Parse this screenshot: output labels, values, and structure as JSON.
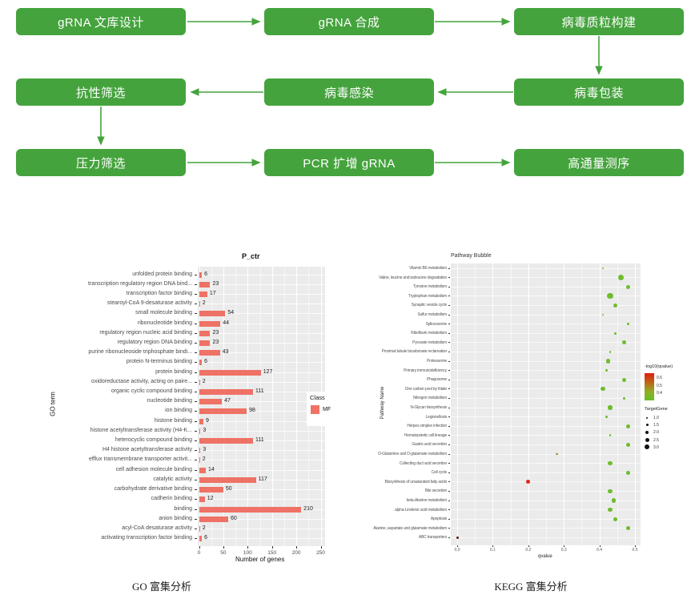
{
  "flowchart": {
    "box_color": "#45a33d",
    "steps": [
      {
        "label": "gRNA 文库设计",
        "row": 0,
        "col": 0
      },
      {
        "label": "gRNA 合成",
        "row": 0,
        "col": 1
      },
      {
        "label": "病毒质粒构建",
        "row": 0,
        "col": 2
      },
      {
        "label": "病毒包装",
        "row": 1,
        "col": 2
      },
      {
        "label": "病毒感染",
        "row": 1,
        "col": 1
      },
      {
        "label": "抗性筛选",
        "row": 1,
        "col": 0
      },
      {
        "label": "压力筛选",
        "row": 2,
        "col": 0
      },
      {
        "label": "PCR 扩增 gRNA",
        "row": 2,
        "col": 1
      },
      {
        "label": "高通量测序",
        "row": 2,
        "col": 2
      }
    ]
  },
  "captions": {
    "go": "GO 富集分析",
    "kegg": "KEGG 富集分析"
  },
  "chart_data": [
    {
      "type": "bar",
      "orientation": "horizontal",
      "title": "P_ctr",
      "xlabel": "Number of genes",
      "ylabel": "GO term",
      "xlim": [
        0,
        260
      ],
      "xticks": [
        0,
        50,
        100,
        150,
        200,
        250
      ],
      "bar_color": "#ee7265",
      "panel_bg": "#ebebeb",
      "legend": {
        "title": "Class",
        "entries": [
          {
            "label": "MF",
            "color": "#ee7265"
          }
        ]
      },
      "categories": [
        "unfolded protein binding",
        "transcription regulatory region DNA bind...",
        "transcription factor binding",
        "stearoyl-CoA 9-desaturase activity",
        "small molecule binding",
        "ribonucleotide binding",
        "regulatory region nucleic acid binding",
        "regulatory region DNA binding",
        "purine ribonucleoside triphosphate bindi...",
        "protein N-terminus binding",
        "protein binding",
        "oxidoreductase activity, acting on paire...",
        "organic cyclic compound binding",
        "nucleotide binding",
        "ion binding",
        "histone binding",
        "histone acetyltransferase activity (H4-K...",
        "heterocyclic compound binding",
        "H4 histone acetyltransferase activity",
        "efflux transmembrane transporter activit...",
        "cell adhesion molecule binding",
        "catalytic activity",
        "carbohydrate derivative binding",
        "cadherin binding",
        "binding",
        "anion binding",
        "acyl-CoA desaturase activity",
        "activating transcription factor binding"
      ],
      "values": [
        6,
        23,
        17,
        2,
        54,
        44,
        23,
        23,
        43,
        6,
        127,
        2,
        111,
        47,
        98,
        9,
        3,
        111,
        3,
        2,
        14,
        117,
        50,
        12,
        210,
        60,
        2,
        6
      ]
    },
    {
      "type": "scatter",
      "title": "Pathway Bubble",
      "xlabel": "qvalue",
      "ylabel": "Pathway Name",
      "xlim": [
        0,
        0.52
      ],
      "xticks": [
        0.0,
        0.1,
        0.2,
        0.3,
        0.4,
        0.5
      ],
      "panel_bg": "#ebebeb",
      "color_legend": {
        "title": "-log10(qvalue)",
        "ticks": [
          0.6,
          0.5,
          0.4
        ],
        "high_color": "#e01f0f",
        "low_color": "#67be28"
      },
      "size_legend": {
        "title": "TargetGene",
        "ticks": [
          1.0,
          1.5,
          2.0,
          2.5,
          3.0
        ]
      },
      "points": [
        {
          "pathway": "Vitamin B6 metabolism",
          "qvalue": 0.41,
          "target_genes": 1,
          "log10q": 0.39,
          "color": "#6fbc2e"
        },
        {
          "pathway": "Valine, leucine and isoleucine degradation",
          "qvalue": 0.46,
          "target_genes": 3,
          "log10q": 0.34,
          "color": "#6fbc2e"
        },
        {
          "pathway": "Tyrosine metabolism",
          "qvalue": 0.48,
          "target_genes": 2,
          "log10q": 0.32,
          "color": "#6fbc2e"
        },
        {
          "pathway": "Tryptophan metabolism",
          "qvalue": 0.43,
          "target_genes": 3,
          "log10q": 0.37,
          "color": "#6fbc2e"
        },
        {
          "pathway": "Synaptic vesicle cycle",
          "qvalue": 0.445,
          "target_genes": 2,
          "log10q": 0.35,
          "color": "#6fbc2e"
        },
        {
          "pathway": "Sulfur metabolism",
          "qvalue": 0.41,
          "target_genes": 1,
          "log10q": 0.39,
          "color": "#6fbc2e"
        },
        {
          "pathway": "Spliceosome",
          "qvalue": 0.48,
          "target_genes": 1,
          "log10q": 0.32,
          "color": "#6fbc2e"
        },
        {
          "pathway": "Riboflavin metabolism",
          "qvalue": 0.445,
          "target_genes": 1,
          "log10q": 0.35,
          "color": "#6fbc2e"
        },
        {
          "pathway": "Pyruvate metabolism",
          "qvalue": 0.47,
          "target_genes": 2,
          "log10q": 0.33,
          "color": "#6fbc2e"
        },
        {
          "pathway": "Proximal tubule bicarbonate reclamation",
          "qvalue": 0.43,
          "target_genes": 1,
          "log10q": 0.37,
          "color": "#6fbc2e"
        },
        {
          "pathway": "Proteasome",
          "qvalue": 0.425,
          "target_genes": 2,
          "log10q": 0.37,
          "color": "#6fbc2e"
        },
        {
          "pathway": "Primary immunodeficiency",
          "qvalue": 0.42,
          "target_genes": 1,
          "log10q": 0.38,
          "color": "#6fbc2e"
        },
        {
          "pathway": "Phagosome",
          "qvalue": 0.47,
          "target_genes": 2,
          "log10q": 0.33,
          "color": "#6fbc2e"
        },
        {
          "pathway": "One carbon pool by folate",
          "qvalue": 0.41,
          "target_genes": 2,
          "log10q": 0.39,
          "color": "#6fbc2e"
        },
        {
          "pathway": "Nitrogen metabolism",
          "qvalue": 0.47,
          "target_genes": 1,
          "log10q": 0.33,
          "color": "#6fbc2e"
        },
        {
          "pathway": "N-Glycan biosynthesis",
          "qvalue": 0.43,
          "target_genes": 2,
          "log10q": 0.37,
          "color": "#6fbc2e"
        },
        {
          "pathway": "Legionellosis",
          "qvalue": 0.42,
          "target_genes": 1,
          "log10q": 0.38,
          "color": "#6fbc2e"
        },
        {
          "pathway": "Herpes simplex infection",
          "qvalue": 0.48,
          "target_genes": 2,
          "log10q": 0.32,
          "color": "#6fbc2e"
        },
        {
          "pathway": "Hematopoietic cell lineage",
          "qvalue": 0.43,
          "target_genes": 1,
          "log10q": 0.37,
          "color": "#6fbc2e"
        },
        {
          "pathway": "Gastric acid secretion",
          "qvalue": 0.48,
          "target_genes": 2,
          "log10q": 0.32,
          "color": "#6fbc2e"
        },
        {
          "pathway": "D-Glutamine and D-glutamate metabolism",
          "qvalue": 0.28,
          "target_genes": 1,
          "log10q": 0.55,
          "color": "#a08a1e"
        },
        {
          "pathway": "Collecting duct acid secretion",
          "qvalue": 0.43,
          "target_genes": 2,
          "log10q": 0.37,
          "color": "#6fbc2e"
        },
        {
          "pathway": "Cell cycle",
          "qvalue": 0.48,
          "target_genes": 2,
          "log10q": 0.32,
          "color": "#6fbc2e"
        },
        {
          "pathway": "Biosynthesis of unsaturated fatty acids",
          "qvalue": 0.2,
          "target_genes": 2,
          "log10q": 0.7,
          "color": "#e1251b"
        },
        {
          "pathway": "Bile secretion",
          "qvalue": 0.43,
          "target_genes": 2,
          "log10q": 0.37,
          "color": "#6fbc2e"
        },
        {
          "pathway": "beta-Alanine metabolism",
          "qvalue": 0.44,
          "target_genes": 2,
          "log10q": 0.36,
          "color": "#6fbc2e"
        },
        {
          "pathway": "alpha-Linolenic acid metabolism",
          "qvalue": 0.43,
          "target_genes": 2,
          "log10q": 0.37,
          "color": "#6fbc2e"
        },
        {
          "pathway": "Apoptosis",
          "qvalue": 0.445,
          "target_genes": 2,
          "log10q": 0.35,
          "color": "#6fbc2e"
        },
        {
          "pathway": "Alanine, aspartate and glutamate metabolism",
          "qvalue": 0.48,
          "target_genes": 2,
          "log10q": 0.32,
          "color": "#6fbc2e"
        },
        {
          "pathway": "ABC transporters",
          "qvalue": 0.002,
          "target_genes": 1,
          "log10q": 2.7,
          "color": "#5c2018"
        }
      ]
    }
  ]
}
